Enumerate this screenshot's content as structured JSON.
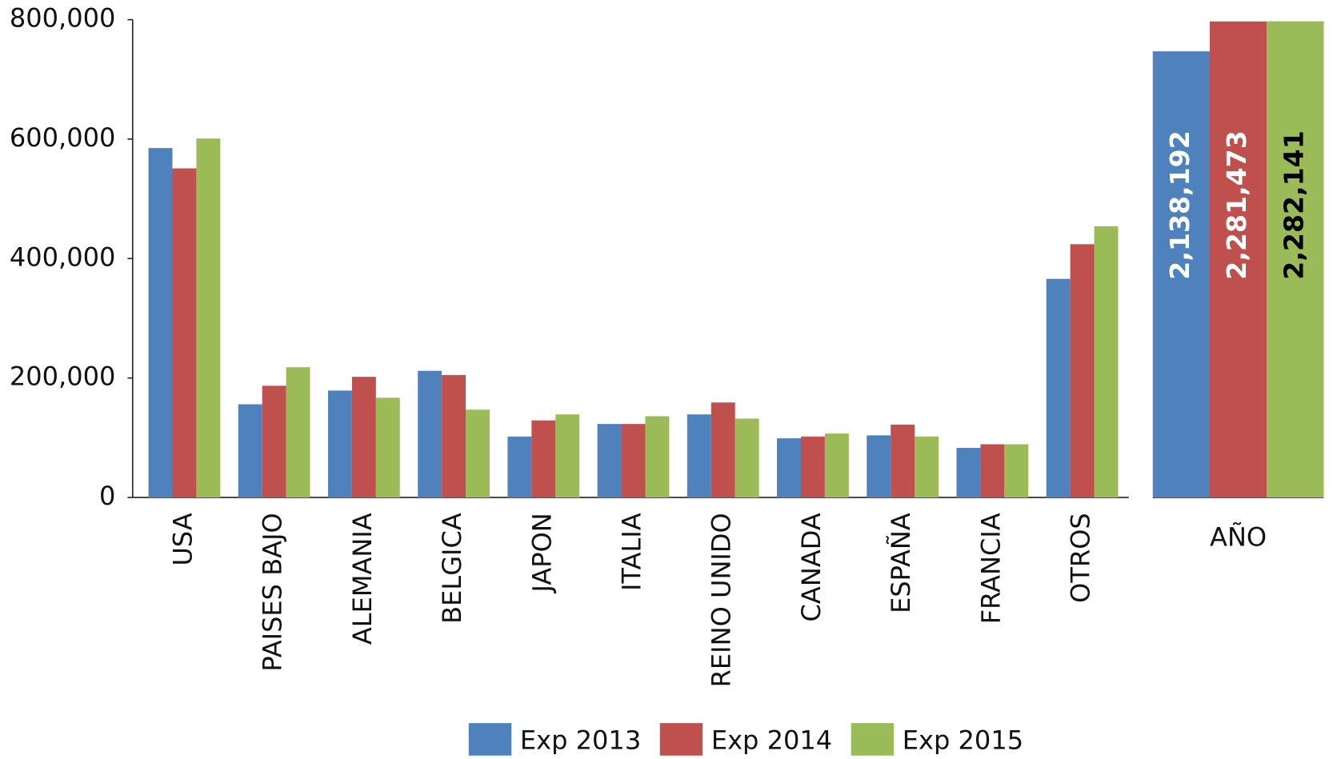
{
  "chart_data": {
    "type": "bar",
    "categories": [
      "USA",
      "PAISES BAJO",
      "ALEMANIA",
      "BELGICA",
      "JAPON",
      "ITALIA",
      "REINO UNIDO",
      "CANADA",
      "ESPAÑA",
      "FRANCIA",
      "OTROS"
    ],
    "series": [
      {
        "name": "Exp 2013",
        "color": "#4f81bd",
        "values": [
          585000,
          156000,
          179000,
          212000,
          102000,
          123000,
          139000,
          99000,
          104000,
          83000,
          366000
        ]
      },
      {
        "name": "Exp 2014",
        "color": "#c0504d",
        "values": [
          551000,
          187000,
          202000,
          205000,
          129000,
          123000,
          159000,
          102000,
          122000,
          89000,
          424000
        ]
      },
      {
        "name": "Exp 2015",
        "color": "#9bbb59",
        "values": [
          601000,
          218000,
          167000,
          147000,
          139000,
          136000,
          132000,
          107000,
          102000,
          89000,
          454000
        ]
      }
    ],
    "totals": {
      "category": "AÑO",
      "axis": "y2",
      "values": [
        2138192,
        2281473,
        2282141
      ],
      "value_labels": [
        "2,138,192",
        "2,281,473",
        "2,282,141"
      ]
    },
    "ylim": [
      0,
      800000
    ],
    "yticks": [
      {
        "value": 0,
        "label": "0"
      },
      {
        "value": 200000,
        "label": "200,000"
      },
      {
        "value": 400000,
        "label": "400,000"
      },
      {
        "value": 600000,
        "label": "600,000"
      },
      {
        "value": 800000,
        "label": "800,000"
      }
    ],
    "y2lim": [
      0,
      2290000
    ],
    "grid": false,
    "legend": "bottom"
  }
}
